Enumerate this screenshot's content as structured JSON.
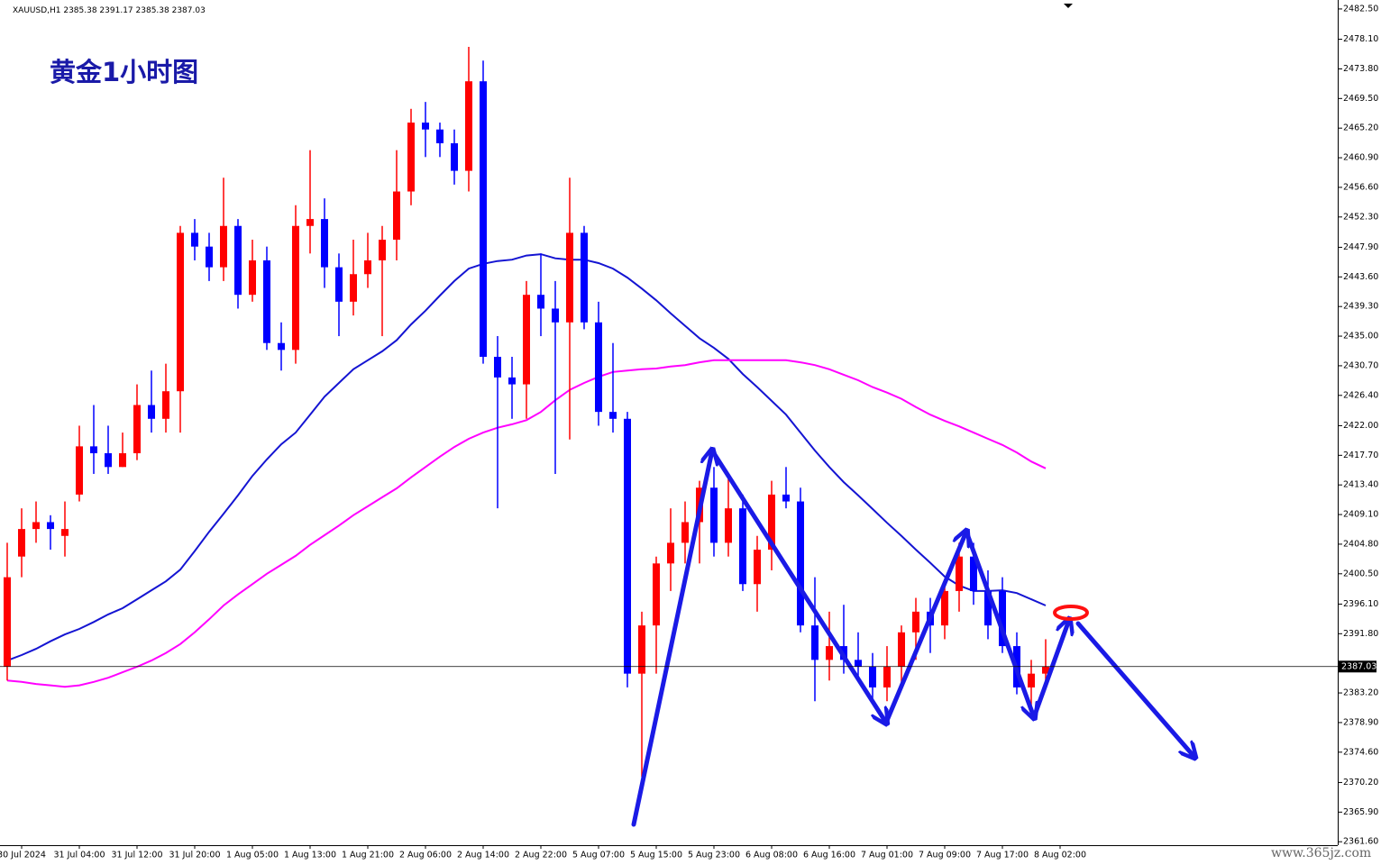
{
  "chart_data": {
    "type": "candlestick",
    "header": "XAUUSD,H1  2385.38 2391.17 2385.38 2387.03",
    "title": "黄金1小时图",
    "watermark": "www.365jz.com",
    "categories": [
      null,
      "30 Jul 2024",
      null,
      null,
      null,
      "31 Jul 04:00",
      null,
      null,
      null,
      "31 Jul 12:00",
      null,
      null,
      null,
      "31 Jul 20:00",
      null,
      null,
      null,
      "1 Aug 05:00",
      null,
      null,
      null,
      "1 Aug 13:00",
      null,
      null,
      null,
      "1 Aug 21:00",
      null,
      null,
      null,
      "2 Aug 06:00",
      null,
      null,
      null,
      "2 Aug 14:00",
      null,
      null,
      null,
      "2 Aug 22:00",
      null,
      null,
      null,
      "5 Aug 07:00",
      null,
      null,
      null,
      "5 Aug 15:00",
      null,
      null,
      null,
      "5 Aug 23:00",
      null,
      null,
      null,
      "6 Aug 08:00",
      null,
      null,
      null,
      "6 Aug 16:00",
      null,
      null,
      null,
      "7 Aug 01:00",
      null,
      null,
      null,
      "7 Aug 09:00",
      null,
      null,
      null,
      "7 Aug 17:00",
      null,
      null,
      null,
      "8 Aug 02:00"
    ],
    "open": [
      2387,
      2403,
      2407,
      2408,
      2406,
      2412,
      2419,
      2418,
      2416,
      2418,
      2425,
      2423,
      2427,
      2450,
      2448,
      2445,
      2451,
      2441,
      2446,
      2434,
      2433,
      2451,
      2452,
      2445,
      2440,
      2444,
      2446,
      2449,
      2456,
      2466,
      2465,
      2463,
      2459,
      2472,
      2432,
      2429,
      2428,
      2441,
      2439,
      2437,
      2450,
      2437,
      2424,
      2423,
      2386,
      2393,
      2402,
      2405,
      2408,
      2413,
      2405,
      2410,
      2399,
      2404,
      2412,
      2411,
      2393,
      2388,
      2390,
      2388,
      2387,
      2384,
      2387,
      2392,
      2395,
      2393,
      2398,
      2403,
      2398,
      2398,
      2390,
      2384,
      2386,
      null
    ],
    "high": [
      2405,
      2410,
      2411,
      2409,
      2411,
      2422,
      2425,
      2422,
      2421,
      2428,
      2430,
      2431,
      2451,
      2452,
      2450,
      2458,
      2452,
      2449,
      2448,
      2437,
      2454,
      2462,
      2455,
      2447,
      2449,
      2450,
      2451,
      2462,
      2468,
      2469,
      2466,
      2465,
      2477,
      2475,
      2435,
      2432,
      2443,
      2447,
      2443,
      2458,
      2451,
      2440,
      2434,
      2424,
      2395,
      2403,
      2410,
      2411,
      2414,
      2416,
      2415,
      2412,
      2406,
      2414,
      2416,
      2413,
      2400,
      2395,
      2396,
      2392,
      2389,
      2390,
      2393,
      2397,
      2397,
      2399,
      2405,
      2405,
      2401,
      2400,
      2392,
      2388,
      2391,
      null
    ],
    "low": [
      2385,
      2400,
      2405,
      2404,
      2403,
      2411,
      2415,
      2415,
      2416,
      2417,
      2421,
      2421,
      2421,
      2446,
      2443,
      2443,
      2439,
      2440,
      2433,
      2430,
      2431,
      2447,
      2442,
      2435,
      2438,
      2442,
      2435,
      2446,
      2454,
      2461,
      2461,
      2457,
      2456,
      2431,
      2410,
      2423,
      2423,
      2435,
      2415,
      2420,
      2436,
      2422,
      2421,
      2384,
      2371,
      2386,
      2398,
      2402,
      2402,
      2403,
      2403,
      2398,
      2395,
      2401,
      2410,
      2392,
      2382,
      2385,
      2386,
      2385,
      2382,
      2382,
      2384,
      2388,
      2389,
      2391,
      2395,
      2396,
      2391,
      2389,
      2383,
      2381,
      2385,
      null
    ],
    "close": [
      2400,
      2407,
      2408,
      2407,
      2407,
      2419,
      2418,
      2416,
      2418,
      2425,
      2423,
      2427,
      2450,
      2448,
      2445,
      2451,
      2441,
      2446,
      2434,
      2433,
      2451,
      2452,
      2445,
      2440,
      2444,
      2446,
      2449,
      2456,
      2466,
      2465,
      2463,
      2459,
      2472,
      2432,
      2429,
      2428,
      2441,
      2439,
      2437,
      2450,
      2437,
      2424,
      2423,
      2386,
      2393,
      2402,
      2405,
      2408,
      2413,
      2405,
      2410,
      2399,
      2404,
      2412,
      2411,
      2393,
      2388,
      2390,
      2388,
      2387,
      2384,
      2387,
      2392,
      2395,
      2393,
      2398,
      2403,
      2398,
      2393,
      2390,
      2384,
      2386,
      2387,
      null
    ],
    "up_color": "#ff0000",
    "down_color": "#0000ff",
    "lines": [
      {
        "color": "#1414d2",
        "values": [
          2387.9,
          2388.7,
          2389.6,
          2390.7,
          2391.7,
          2392.5,
          2393.5,
          2394.6,
          2395.5,
          2396.8,
          2398.1,
          2399.4,
          2401.1,
          2403.8,
          2406.6,
          2409.2,
          2411.9,
          2414.7,
          2417.1,
          2419.3,
          2421.0,
          2423.6,
          2426.2,
          2428.2,
          2430.2,
          2431.5,
          2432.8,
          2434.4,
          2436.7,
          2438.7,
          2440.9,
          2443.0,
          2444.8,
          2445.5,
          2445.9,
          2446.1,
          2446.7,
          2446.9,
          2446.3,
          2446.1,
          2446.1,
          2445.6,
          2444.8,
          2443.5,
          2441.9,
          2440.2,
          2438.3,
          2436.5,
          2434.7,
          2433.3,
          2431.7,
          2429.5,
          2427.6,
          2425.6,
          2423.6,
          2421.0,
          2418.4,
          2416.0,
          2413.8,
          2411.9,
          2409.9,
          2407.9,
          2406.0,
          2404.0,
          2402.1,
          2400.1,
          2398.8,
          2398.0,
          2398.0,
          2398.1,
          2397.7,
          2396.8,
          2395.9,
          null
        ]
      },
      {
        "color": "#ff00ff",
        "values": [
          2385.0,
          2384.8,
          2384.5,
          2384.3,
          2384.1,
          2384.3,
          2384.8,
          2385.4,
          2386.2,
          2387.0,
          2387.9,
          2389.0,
          2390.3,
          2392.0,
          2393.9,
          2395.9,
          2397.5,
          2399.0,
          2400.5,
          2401.8,
          2403.1,
          2404.7,
          2406.1,
          2407.5,
          2409.0,
          2410.3,
          2411.6,
          2412.9,
          2414.5,
          2416.0,
          2417.5,
          2418.9,
          2420.1,
          2421.0,
          2421.7,
          2422.2,
          2422.8,
          2424.0,
          2425.7,
          2427.2,
          2428.2,
          2429.1,
          2429.8,
          2430.0,
          2430.2,
          2430.3,
          2430.6,
          2430.8,
          2431.2,
          2431.5,
          2431.5,
          2431.5,
          2431.5,
          2431.5,
          2431.5,
          2431.2,
          2430.8,
          2430.2,
          2429.4,
          2428.6,
          2427.6,
          2426.8,
          2425.9,
          2424.7,
          2423.6,
          2422.7,
          2421.9,
          2421.0,
          2420.1,
          2419.2,
          2418.1,
          2416.8,
          2415.8,
          null
        ]
      }
    ],
    "current_price": 2387.03,
    "ylim": [
      2361.1,
      2483.8
    ],
    "yticks": [
      {
        "value": 2482.5,
        "label": "2482.50"
      },
      {
        "value": 2478.1,
        "label": "2478.10"
      },
      {
        "value": 2473.8,
        "label": "2473.80"
      },
      {
        "value": 2469.5,
        "label": "2469.50"
      },
      {
        "value": 2465.2,
        "label": "2465.20"
      },
      {
        "value": 2460.9,
        "label": "2460.90"
      },
      {
        "value": 2456.6,
        "label": "2456.60"
      },
      {
        "value": 2452.3,
        "label": "2452.30"
      },
      {
        "value": 2447.9,
        "label": "2447.90"
      },
      {
        "value": 2443.6,
        "label": "2443.60"
      },
      {
        "value": 2439.3,
        "label": "2439.30"
      },
      {
        "value": 2435.0,
        "label": "2435.00"
      },
      {
        "value": 2430.7,
        "label": "2430.70"
      },
      {
        "value": 2426.4,
        "label": "2426.40"
      },
      {
        "value": 2422.0,
        "label": "2422.00"
      },
      {
        "value": 2417.7,
        "label": "2417.70"
      },
      {
        "value": 2413.4,
        "label": "2413.40"
      },
      {
        "value": 2409.1,
        "label": "2409.10"
      },
      {
        "value": 2404.8,
        "label": "2404.80"
      },
      {
        "value": 2400.5,
        "label": "2400.50"
      },
      {
        "value": 2396.1,
        "label": "2396.10"
      },
      {
        "value": 2391.8,
        "label": "2391.80"
      },
      {
        "value": 2383.2,
        "label": "2383.20"
      },
      {
        "value": 2378.9,
        "label": "2378.90"
      },
      {
        "value": 2374.6,
        "label": "2374.60"
      },
      {
        "value": 2370.2,
        "label": "2370.20"
      },
      {
        "value": 2365.9,
        "label": "2365.90"
      },
      {
        "value": 2361.6,
        "label": "2361.60"
      }
    ]
  }
}
